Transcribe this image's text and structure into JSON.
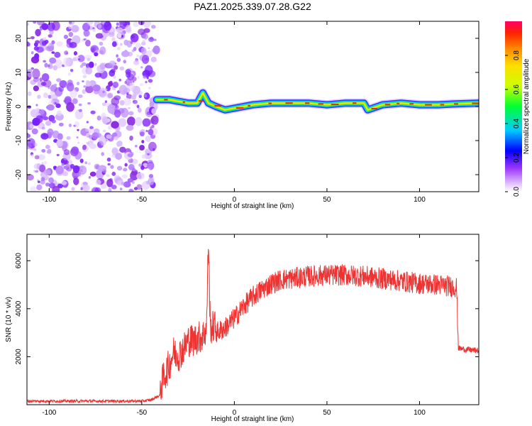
{
  "figure_title": "PAZ1.2025.339.07.28.G22",
  "chart_data": [
    {
      "type": "heatmap",
      "title": "PAZ1.2025.339.07.28.G22",
      "xlabel": "Height of straight line (km)",
      "ylabel": "Frequency (Hz)",
      "xlim": [
        -112,
        132
      ],
      "ylim": [
        -25,
        25
      ],
      "xticks": [
        -100,
        -50,
        0,
        50,
        100
      ],
      "yticks": [
        -20,
        -10,
        0,
        10,
        20
      ],
      "noise_region_x": [
        -112,
        -42
      ],
      "ridge": {
        "x": [
          -42,
          -35,
          -30,
          -25,
          -20,
          -17,
          -14,
          -10,
          -5,
          0,
          10,
          20,
          30,
          40,
          50,
          60,
          70,
          72,
          80,
          90,
          100,
          110,
          120,
          132
        ],
        "freq_hz": [
          2,
          2,
          1.5,
          1,
          1,
          4,
          1,
          0,
          -1,
          -0.5,
          0.5,
          1,
          1,
          1,
          0.5,
          1,
          1,
          -1,
          0.5,
          1,
          0.5,
          0.5,
          0.8,
          1
        ]
      },
      "colorbar": {
        "label": "Normalized spectral amplitude",
        "ticks": [
          "0.0",
          "0.2",
          "0.4",
          "0.6",
          "0.8"
        ],
        "range": [
          0,
          1
        ]
      }
    },
    {
      "type": "line",
      "xlabel": "Height of straight line (km)",
      "ylabel": "SNR (10 * v/v)",
      "xlim": [
        -112,
        132
      ],
      "ylim": [
        0,
        7100
      ],
      "xticks": [
        -100,
        -50,
        0,
        50,
        100
      ],
      "yticks": [
        2000,
        4000,
        6000
      ],
      "series": [
        {
          "name": "SNR",
          "color": "#ee3333",
          "x": [
            -112,
            -90,
            -70,
            -50,
            -45,
            -40,
            -38,
            -35,
            -33,
            -30,
            -27,
            -25,
            -22,
            -20,
            -17,
            -15,
            -14,
            -13,
            -10,
            -5,
            0,
            5,
            10,
            15,
            20,
            25,
            30,
            40,
            50,
            60,
            70,
            80,
            90,
            100,
            110,
            115,
            120,
            121,
            125,
            132
          ],
          "values": [
            150,
            150,
            150,
            150,
            200,
            400,
            900,
            1400,
            1900,
            1800,
            2100,
            2400,
            2400,
            2500,
            2600,
            2900,
            6700,
            2900,
            3000,
            3200,
            3600,
            4100,
            4500,
            4800,
            5050,
            5200,
            5250,
            5350,
            5400,
            5400,
            5350,
            5250,
            5150,
            5050,
            5000,
            4950,
            4900,
            2350,
            2300,
            2250
          ]
        }
      ]
    }
  ]
}
